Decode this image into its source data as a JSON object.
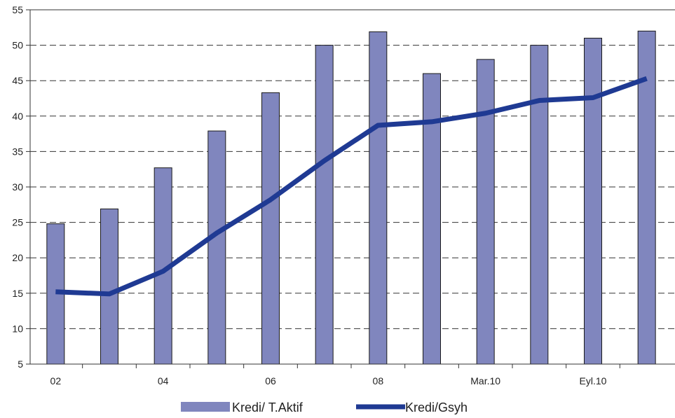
{
  "chart_data": {
    "type": "bar",
    "categories": [
      "02",
      "",
      "04",
      "",
      "06",
      "",
      "08",
      "",
      "Mar.10",
      "",
      "Eyl.10",
      ""
    ],
    "x_tick_labels": [
      "02",
      "04",
      "06",
      "08",
      "Mar.10",
      "Eyl.10"
    ],
    "y_tick_labels": [
      "5",
      "10",
      "15",
      "20",
      "25",
      "30",
      "35",
      "40",
      "45",
      "50",
      "55"
    ],
    "ylim": [
      5,
      55
    ],
    "grid": "horizontal-dashed",
    "legend_position": "bottom",
    "series": [
      {
        "name": "Kredi/ T.Aktif",
        "kind": "bar",
        "color": "#8086BE",
        "values": [
          24.8,
          26.9,
          32.7,
          37.9,
          43.3,
          50.0,
          51.9,
          46.0,
          48.0,
          50.0,
          51.0,
          52.0
        ]
      },
      {
        "name": "Kredi/Gsyh",
        "kind": "line",
        "color": "#1F3A93",
        "values": [
          15.2,
          14.9,
          18.1,
          23.5,
          28.2,
          33.7,
          38.7,
          39.2,
          40.4,
          42.2,
          42.6,
          45.3
        ]
      }
    ]
  }
}
